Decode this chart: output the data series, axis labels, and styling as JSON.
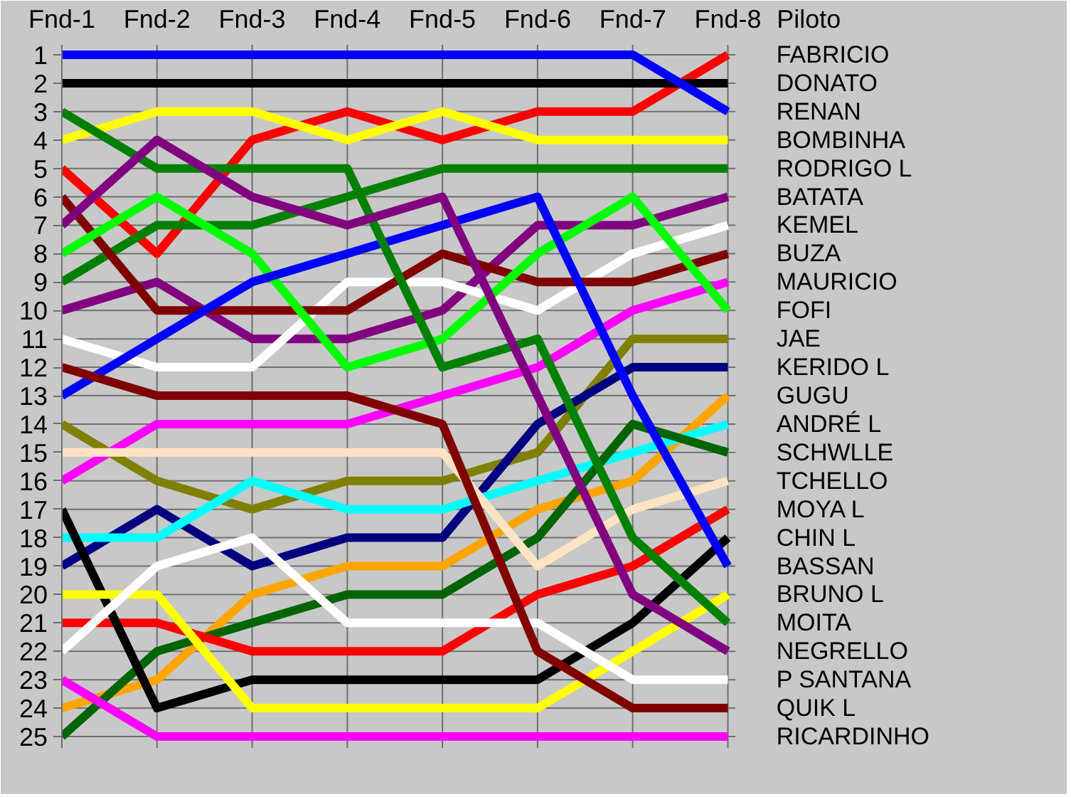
{
  "chart_data": {
    "type": "line",
    "legend_title": "Piloto",
    "categories": [
      "Fnd-1",
      "Fnd-2",
      "Fnd-3",
      "Fnd-4",
      "Fnd-5",
      "Fnd-6",
      "Fnd-7",
      "Fnd-8"
    ],
    "ylim": [
      25.4,
      0.65
    ],
    "yticks": [
      1,
      2,
      3,
      4,
      5,
      6,
      7,
      8,
      9,
      10,
      11,
      12,
      13,
      14,
      15,
      16,
      17,
      18,
      19,
      20,
      21,
      22,
      23,
      24,
      25
    ],
    "grid": true,
    "series": [
      {
        "name": "FABRICIO",
        "color": "#ff0000",
        "values": [
          5,
          8,
          4,
          3,
          4,
          3,
          3,
          1
        ]
      },
      {
        "name": "DONATO",
        "color": "#000000",
        "values": [
          2,
          2,
          2,
          2,
          2,
          2,
          2,
          2
        ]
      },
      {
        "name": "RENAN",
        "color": "#0000ff",
        "values": [
          1,
          1,
          1,
          1,
          1,
          1,
          1,
          3
        ]
      },
      {
        "name": "BOMBINHA",
        "color": "#ffff00",
        "values": [
          4,
          3,
          3,
          4,
          3,
          4,
          4,
          4
        ]
      },
      {
        "name": "RODRIGO L",
        "color": "#008000",
        "values": [
          9,
          7,
          7,
          6,
          5,
          5,
          5,
          5
        ]
      },
      {
        "name": "BATATA",
        "color": "#800080",
        "values": [
          10,
          9,
          11,
          11,
          10,
          7,
          7,
          6
        ]
      },
      {
        "name": "KEMEL",
        "color": "#ffffff",
        "values": [
          11,
          12,
          12,
          9,
          9,
          10,
          8,
          7
        ]
      },
      {
        "name": "BUZA",
        "color": "#800000",
        "values": [
          6,
          10,
          10,
          10,
          8,
          9,
          9,
          8
        ]
      },
      {
        "name": "MAURICIO",
        "color": "#ff00ff",
        "values": [
          16,
          14,
          14,
          14,
          13,
          12,
          10,
          9
        ]
      },
      {
        "name": "FOFI",
        "color": "#00ff00",
        "values": [
          8,
          6,
          8,
          12,
          11,
          8,
          6,
          10
        ]
      },
      {
        "name": "JAE",
        "color": "#808000",
        "values": [
          14,
          16,
          17,
          16,
          16,
          15,
          11,
          11
        ]
      },
      {
        "name": "KERIDO L",
        "color": "#000080",
        "values": [
          19,
          17,
          19,
          18,
          18,
          14,
          12,
          12
        ]
      },
      {
        "name": "GUGU",
        "color": "#ffa500",
        "values": [
          24,
          23,
          20,
          19,
          19,
          17,
          16,
          13
        ]
      },
      {
        "name": "ANDRÉ L",
        "color": "#00ffff",
        "values": [
          18,
          18,
          16,
          17,
          17,
          16,
          15,
          14
        ]
      },
      {
        "name": "SCHWLLE",
        "color": "#006400",
        "values": [
          25,
          22,
          21,
          20,
          20,
          18,
          14,
          15
        ]
      },
      {
        "name": "TCHELLO",
        "color": "#ffe4c4",
        "values": [
          15,
          15,
          15,
          15,
          15,
          19,
          17,
          16
        ]
      },
      {
        "name": "MOYA L",
        "color": "#ff0000",
        "values": [
          21,
          21,
          22,
          22,
          22,
          20,
          19,
          17
        ]
      },
      {
        "name": "CHIN L",
        "color": "#000000",
        "values": [
          17,
          24,
          23,
          23,
          23,
          23,
          21,
          18
        ]
      },
      {
        "name": "BASSAN",
        "color": "#0000ff",
        "values": [
          13,
          11,
          9,
          8,
          7,
          6,
          13,
          19
        ]
      },
      {
        "name": "BRUNO L",
        "color": "#ffff00",
        "values": [
          20,
          20,
          24,
          24,
          24,
          24,
          22,
          20
        ]
      },
      {
        "name": "MOITA",
        "color": "#008000",
        "values": [
          3,
          5,
          5,
          5,
          12,
          11,
          18,
          21
        ]
      },
      {
        "name": "NEGRELLO",
        "color": "#800080",
        "values": [
          7,
          4,
          6,
          7,
          6,
          13,
          20,
          22
        ]
      },
      {
        "name": "P SANTANA",
        "color": "#ffffff",
        "values": [
          22,
          19,
          18,
          21,
          21,
          21,
          23,
          23
        ]
      },
      {
        "name": "QUIK L",
        "color": "#800000",
        "values": [
          12,
          13,
          13,
          13,
          14,
          22,
          24,
          24
        ]
      },
      {
        "name": "RICARDINHO",
        "color": "#ff00ff",
        "values": [
          23,
          25,
          25,
          25,
          25,
          25,
          25,
          25
        ]
      }
    ]
  }
}
